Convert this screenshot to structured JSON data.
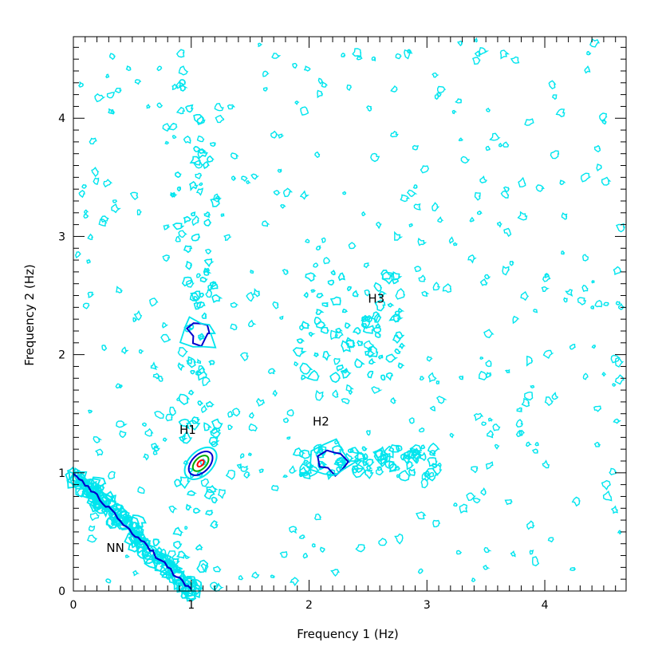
{
  "chart_data": {
    "type": "contour",
    "title": "",
    "xlabel": "Frequency 1 (Hz)",
    "ylabel": "Frequency 2 (Hz)",
    "xlim": [
      0,
      4.69
    ],
    "ylim": [
      0,
      4.69
    ],
    "x_ticks": [
      "0",
      "1",
      "2",
      "3",
      "4"
    ],
    "y_ticks": [
      "0",
      "1",
      "2",
      "3",
      "4"
    ],
    "x_tick_values": [
      0,
      1,
      2,
      3,
      4
    ],
    "y_tick_values": [
      0,
      1,
      2,
      3,
      4
    ],
    "grid": false,
    "contour_colors": [
      "#00e5ee",
      "#0000cd",
      "#00aa00",
      "#ff0000"
    ],
    "annotations": [
      {
        "text": "H1",
        "x": 0.9,
        "y": 1.33
      },
      {
        "text": "H2",
        "x": 2.03,
        "y": 1.4
      },
      {
        "text": "H3",
        "x": 2.5,
        "y": 2.44
      },
      {
        "text": "NN",
        "x": 0.28,
        "y": 0.33
      }
    ],
    "peaks": [
      {
        "name": "H1",
        "x": 1.08,
        "y": 1.08,
        "levels": 4
      },
      {
        "name": "H2",
        "x": 2.2,
        "y": 1.1,
        "levels": 2
      },
      {
        "name": "H3",
        "x": 2.3,
        "y": 2.2,
        "levels": 1
      },
      {
        "name": "NN",
        "x_start": 0.0,
        "y_start": 1.0,
        "x_end": 1.0,
        "y_end": 0.0,
        "levels": 2
      }
    ]
  }
}
